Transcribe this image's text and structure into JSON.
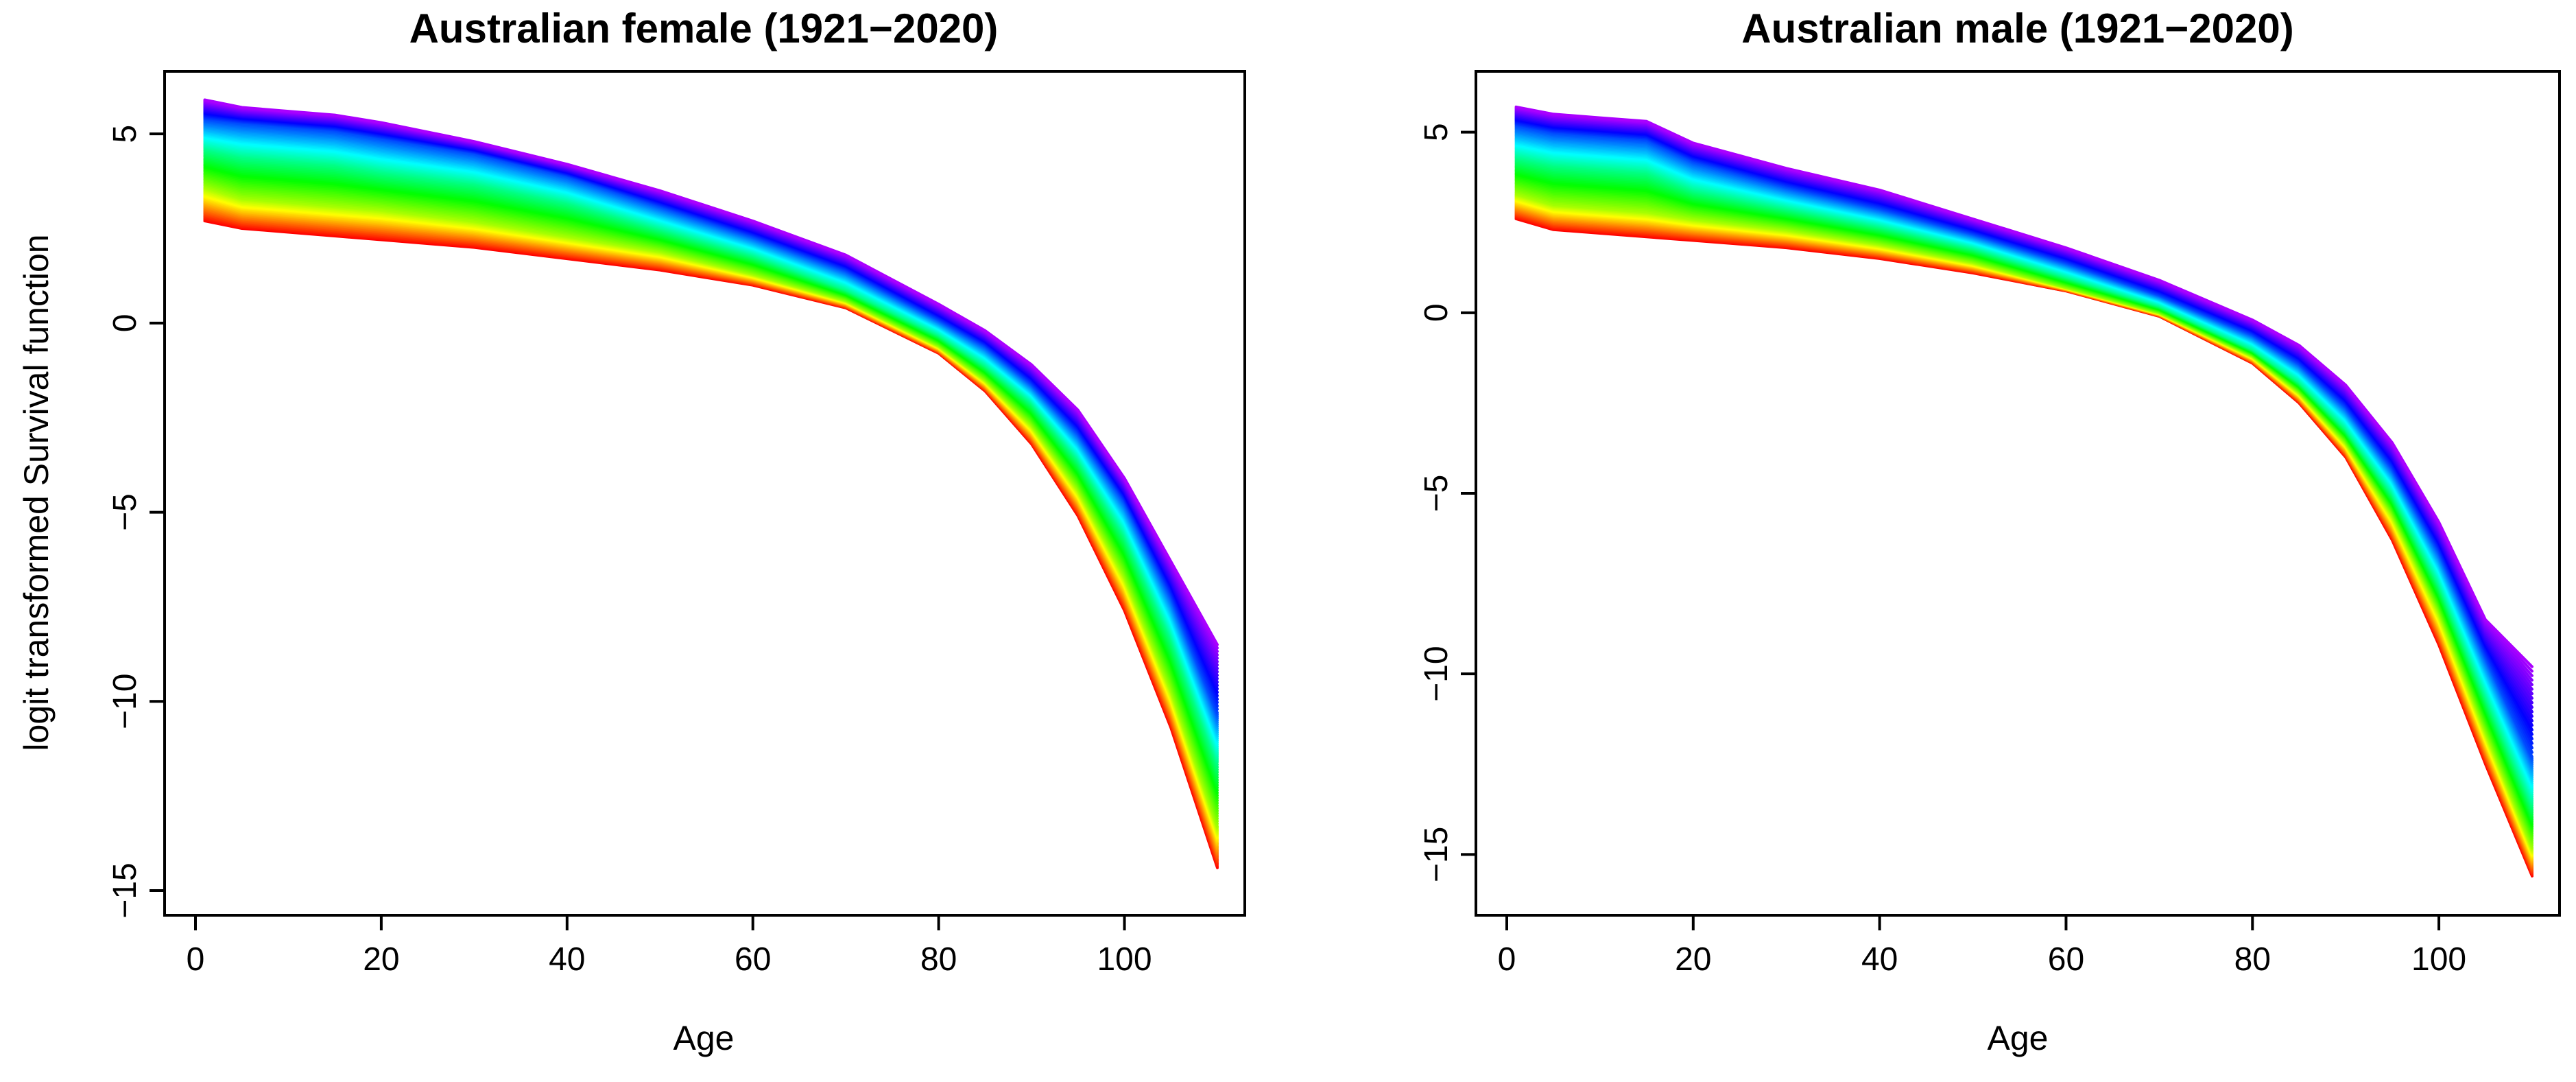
{
  "chart_data": [
    {
      "type": "line",
      "title": "Australian female (1921−2020)",
      "xlabel": "Age",
      "ylabel": "logit transformed Survival function",
      "xlim": [
        0,
        110
      ],
      "ylim": [
        -15,
        6
      ],
      "xticks": [
        "0",
        "20",
        "40",
        "60",
        "80",
        "100"
      ],
      "yticks": [
        "−15",
        "−10",
        "−5",
        "0",
        "5"
      ],
      "grid": false,
      "legend": "none",
      "year_range": [
        1921,
        2020
      ],
      "color_scale": "rainbow: red (earliest year) to violet (latest year)",
      "x": [
        1,
        5,
        10,
        15,
        20,
        30,
        40,
        50,
        60,
        70,
        80,
        85,
        90,
        95,
        100,
        105,
        110
      ],
      "series": [
        {
          "label_year": 1921,
          "values": [
            2.7,
            2.5,
            2.4,
            2.3,
            2.2,
            2.0,
            1.7,
            1.4,
            1.0,
            0.4,
            -0.8,
            -1.8,
            -3.2,
            -5.1,
            -7.6,
            -10.7,
            -14.4
          ]
        },
        {
          "label_year": 1950,
          "values": [
            3.6,
            3.3,
            3.2,
            3.1,
            3.0,
            2.7,
            2.3,
            1.9,
            1.3,
            0.6,
            -0.6,
            -1.5,
            -2.7,
            -4.4,
            -6.7,
            -9.7,
            -13.3
          ]
        },
        {
          "label_year": 1975,
          "values": [
            4.6,
            4.4,
            4.3,
            4.2,
            4.0,
            3.7,
            3.2,
            2.5,
            1.8,
            0.9,
            -0.3,
            -1.1,
            -2.1,
            -3.6,
            -5.6,
            -8.3,
            -11.6
          ]
        },
        {
          "label_year": 2000,
          "values": [
            5.4,
            5.3,
            5.2,
            5.1,
            4.9,
            4.5,
            3.9,
            3.1,
            2.3,
            1.4,
            0.1,
            -0.6,
            -1.6,
            -2.9,
            -4.7,
            -7.2,
            -10.3
          ]
        },
        {
          "label_year": 2020,
          "values": [
            5.9,
            5.7,
            5.6,
            5.5,
            5.3,
            4.8,
            4.2,
            3.5,
            2.7,
            1.8,
            0.5,
            -0.2,
            -1.1,
            -2.3,
            -4.1,
            -6.3,
            -8.5
          ]
        }
      ]
    },
    {
      "type": "line",
      "title": "Australian male (1921−2020)",
      "xlabel": "Age",
      "ylabel": "",
      "xlim": [
        0,
        110
      ],
      "ylim": [
        -16,
        6
      ],
      "xticks": [
        "0",
        "20",
        "40",
        "60",
        "80",
        "100"
      ],
      "yticks": [
        "−15",
        "−10",
        "−5",
        "0",
        "5"
      ],
      "grid": false,
      "legend": "none",
      "year_range": [
        1921,
        2020
      ],
      "color_scale": "rainbow: red (earliest year) to violet (latest year)",
      "x": [
        1,
        5,
        10,
        15,
        20,
        30,
        40,
        50,
        60,
        70,
        80,
        85,
        90,
        95,
        100,
        105,
        110
      ],
      "series": [
        {
          "label_year": 1921,
          "values": [
            2.6,
            2.3,
            2.2,
            2.1,
            2.0,
            1.8,
            1.5,
            1.1,
            0.6,
            -0.1,
            -1.4,
            -2.5,
            -4.0,
            -6.3,
            -9.2,
            -12.5,
            -15.6
          ]
        },
        {
          "label_year": 1950,
          "values": [
            3.3,
            3.0,
            2.9,
            2.8,
            2.6,
            2.3,
            1.9,
            1.4,
            0.7,
            0.0,
            -1.2,
            -2.2,
            -3.6,
            -5.6,
            -8.3,
            -11.6,
            -14.8
          ]
        },
        {
          "label_year": 1975,
          "values": [
            4.3,
            4.1,
            4.0,
            3.9,
            3.4,
            2.9,
            2.4,
            1.8,
            1.0,
            0.2,
            -1.0,
            -1.9,
            -3.2,
            -5.0,
            -7.5,
            -10.6,
            -13.6
          ]
        },
        {
          "label_year": 2000,
          "values": [
            5.2,
            5.0,
            4.9,
            4.8,
            4.2,
            3.5,
            2.9,
            2.2,
            1.4,
            0.5,
            -0.6,
            -1.4,
            -2.6,
            -4.3,
            -6.6,
            -9.5,
            -12.3
          ]
        },
        {
          "label_year": 2020,
          "values": [
            5.7,
            5.5,
            5.4,
            5.3,
            4.7,
            4.0,
            3.4,
            2.6,
            1.8,
            0.9,
            -0.2,
            -0.9,
            -2.0,
            -3.6,
            -5.8,
            -8.5,
            -9.8
          ]
        }
      ]
    }
  ]
}
